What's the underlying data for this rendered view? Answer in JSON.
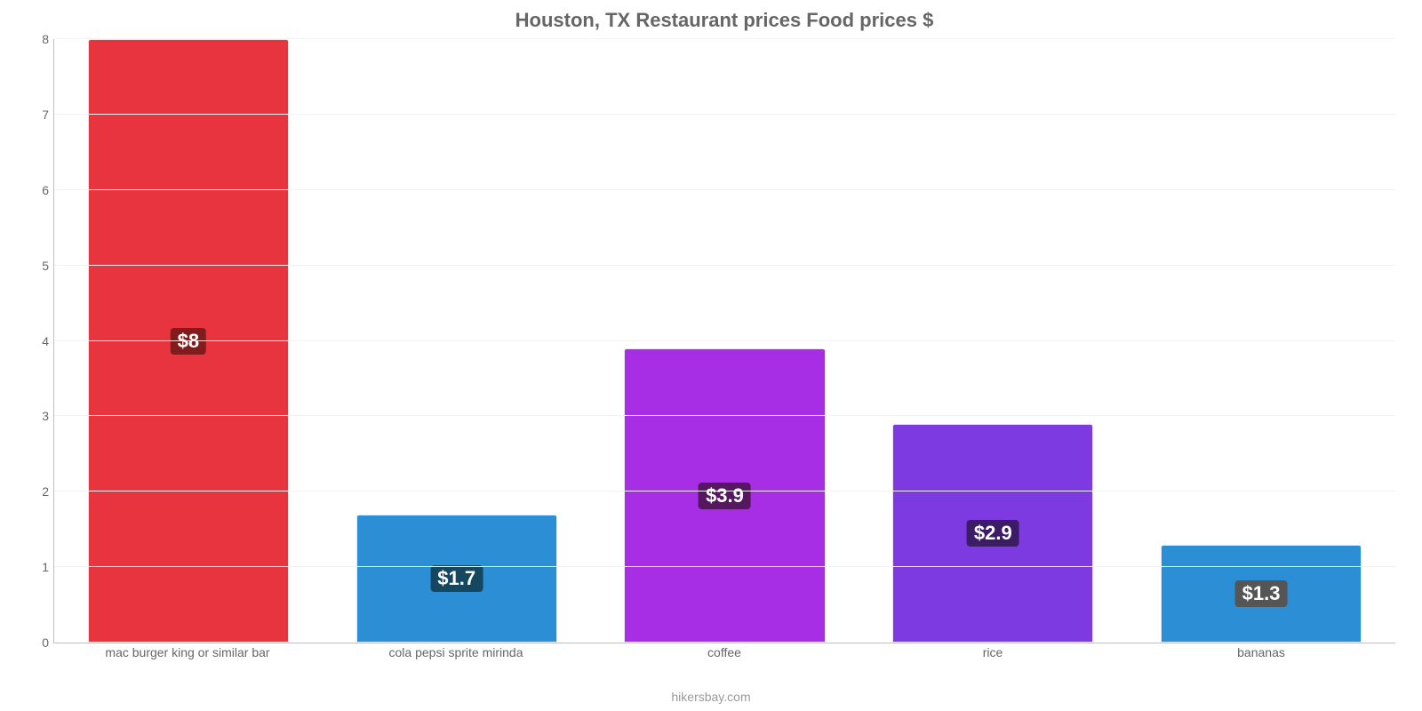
{
  "chart": {
    "type": "bar",
    "title": "Houston, TX Restaurant prices Food prices $",
    "title_color": "#666666",
    "title_fontsize": 22,
    "attribution": "hikersbay.com",
    "attribution_color": "#999999",
    "background_color": "#ffffff",
    "grid_color": "#f3f3f3",
    "axis_tick_color": "#666666",
    "xlabel_color": "#666666",
    "ylim": [
      0,
      8
    ],
    "ytick_step": 1,
    "yticks": [
      "0",
      "1",
      "2",
      "3",
      "4",
      "5",
      "6",
      "7",
      "8"
    ],
    "bar_width_pct": 75,
    "categories": [
      "mac burger king or similar bar",
      "cola pepsi sprite mirinda",
      "coffee",
      "rice",
      "bananas"
    ],
    "values": [
      8,
      1.7,
      3.9,
      2.9,
      1.3
    ],
    "value_labels": [
      "$8",
      "$1.7",
      "$3.9",
      "$2.9",
      "$1.3"
    ],
    "bar_colors": [
      "#e8343f",
      "#2c8ed5",
      "#a82ee5",
      "#7c3ae0",
      "#2c8ed5"
    ],
    "label_bg_colors": [
      "#801c1c",
      "#164761",
      "#55175f",
      "#3b1c65",
      "#555555"
    ],
    "label_fontsize": 22
  }
}
